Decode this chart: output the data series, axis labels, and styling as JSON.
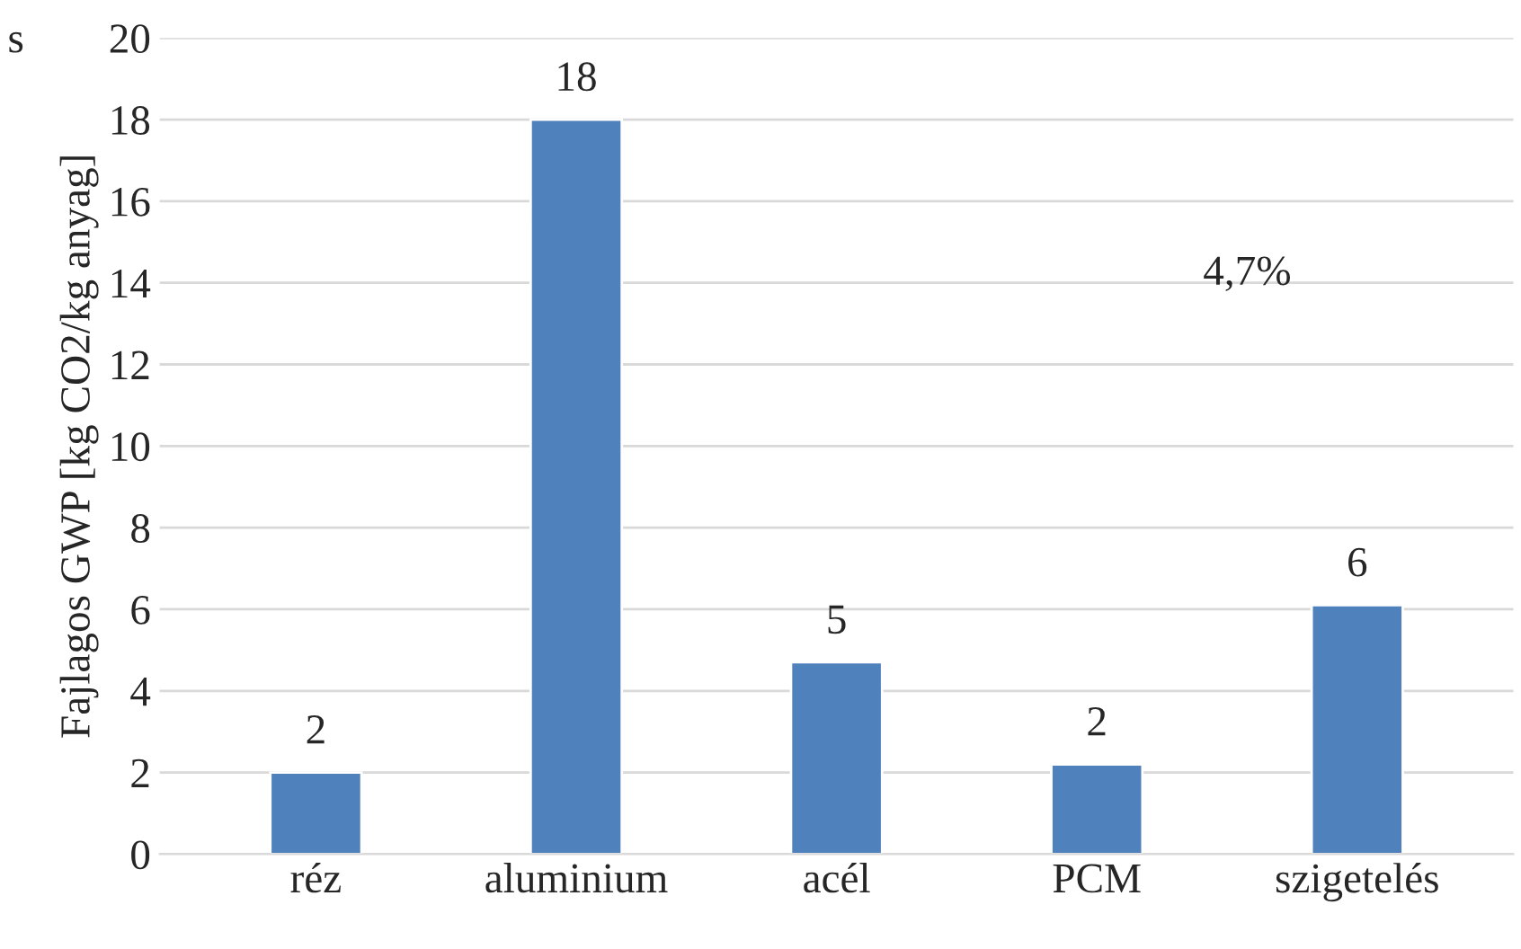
{
  "chart_data": {
    "type": "bar",
    "ylabel": "Fajlagos GWP [kg CO2/kg anyag]",
    "categories": [
      "réz",
      "aluminium",
      "acél",
      "PCM",
      "szigetelés"
    ],
    "values": [
      2.0,
      18.0,
      4.7,
      2.2,
      6.1
    ],
    "value_labels": [
      "2",
      "18",
      "5",
      "2",
      "6"
    ],
    "color": "#4f81bd",
    "ylim": [
      0,
      20
    ],
    "yticks": [
      0,
      2,
      4,
      6,
      8,
      10,
      12,
      14,
      16,
      18,
      20
    ],
    "grid": "y",
    "annotations": [
      "s",
      "4,7%"
    ]
  }
}
